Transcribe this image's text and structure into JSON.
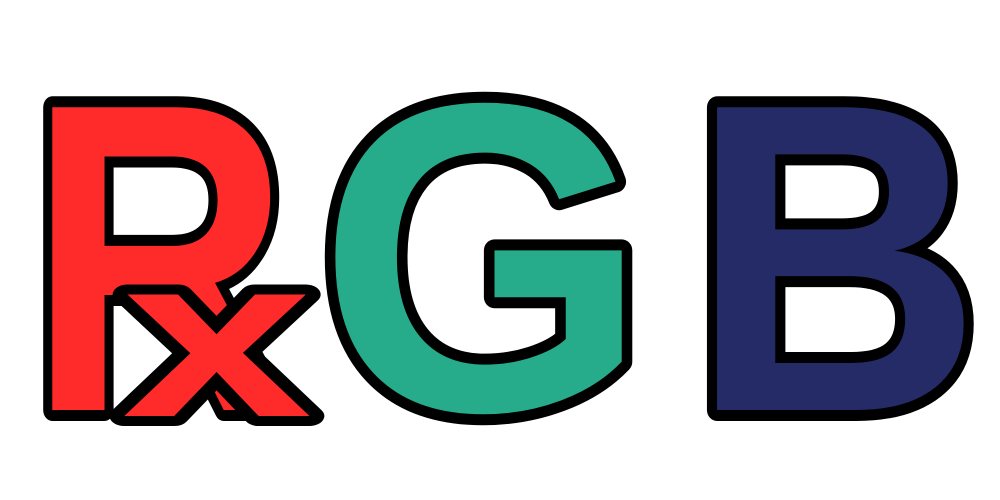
{
  "logo": {
    "letters": [
      {
        "text": "R",
        "color": "#ff2a2a",
        "name": "letter-r"
      },
      {
        "text": "x",
        "color": "#ff2a2a",
        "name": "letter-x-subscript"
      },
      {
        "text": "G",
        "color": "#26ac8b",
        "name": "letter-g"
      },
      {
        "text": "B",
        "color": "#252b67",
        "name": "letter-b"
      }
    ],
    "outline_color": "#000000",
    "background_color": "#ffffff"
  }
}
